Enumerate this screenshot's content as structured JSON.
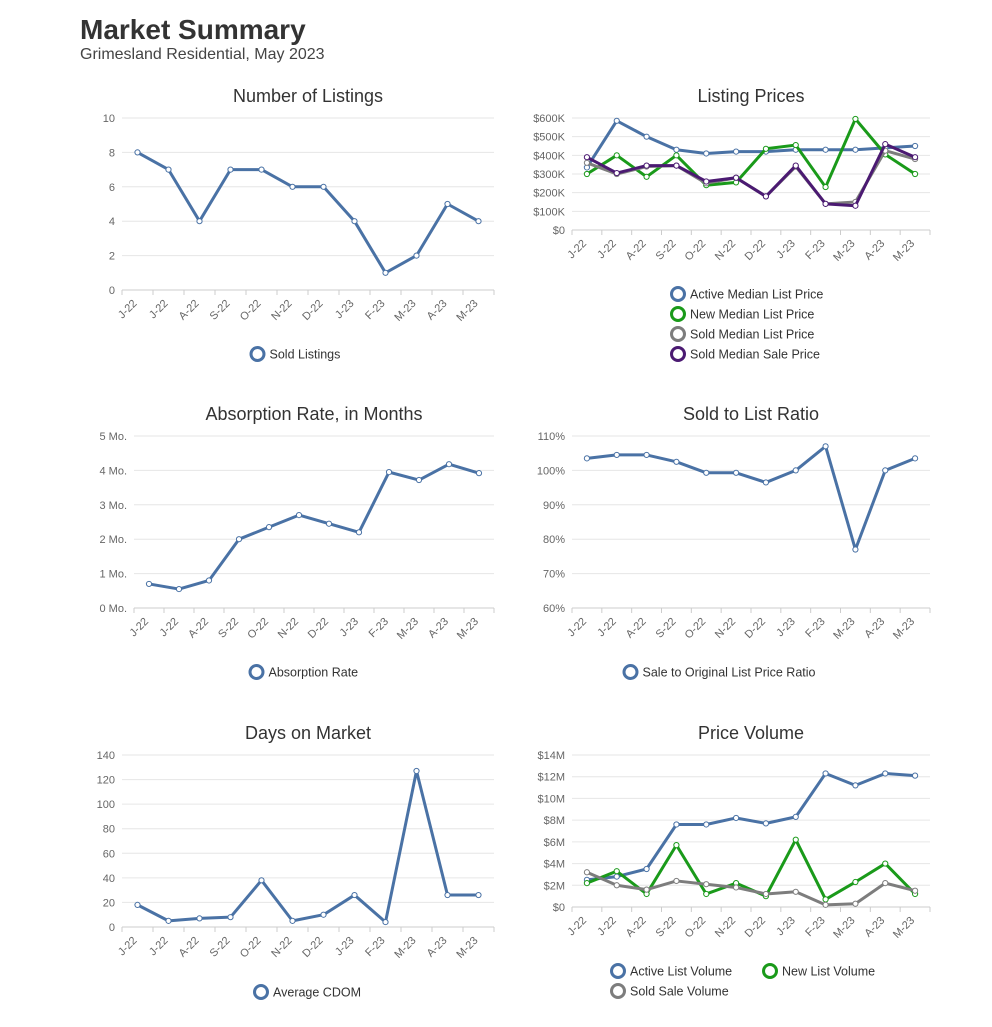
{
  "header": {
    "title": "Market Summary",
    "subtitle": "Grimesland Residential, May 2023"
  },
  "colors": {
    "blue": "#4a72a5",
    "green": "#1a9a1a",
    "gray": "#7d7d7d",
    "purple": "#4b1a72"
  },
  "chart_data": [
    {
      "id": "listings",
      "type": "line",
      "title": "Number of Listings",
      "categories": [
        "J-22",
        "J-22",
        "A-22",
        "S-22",
        "O-22",
        "N-22",
        "D-22",
        "J-23",
        "F-23",
        "M-23",
        "A-23",
        "M-23"
      ],
      "y_ticks": [
        "0",
        "2",
        "4",
        "6",
        "8",
        "10"
      ],
      "ylim": [
        0,
        10
      ],
      "series": [
        {
          "name": "Sold Listings",
          "color": "blue",
          "values": [
            8,
            7,
            4,
            7,
            7,
            6,
            6,
            4,
            1,
            2,
            5,
            4
          ]
        }
      ]
    },
    {
      "id": "prices",
      "type": "line",
      "title": "Listing Prices",
      "categories": [
        "J-22",
        "J-22",
        "A-22",
        "S-22",
        "O-22",
        "N-22",
        "D-22",
        "J-23",
        "F-23",
        "M-23",
        "A-23",
        "M-23"
      ],
      "y_ticks": [
        "$0",
        "$100K",
        "$200K",
        "$300K",
        "$400K",
        "$500K",
        "$600K"
      ],
      "ylim": [
        0,
        600000
      ],
      "series": [
        {
          "name": "Active Median List Price",
          "color": "blue",
          "values": [
            335000,
            585000,
            500000,
            430000,
            410000,
            420000,
            420000,
            430000,
            430000,
            430000,
            440000,
            450000
          ]
        },
        {
          "name": "New Median List Price",
          "color": "green",
          "values": [
            300000,
            400000,
            285000,
            400000,
            240000,
            255000,
            435000,
            455000,
            230000,
            595000,
            405000,
            300000
          ]
        },
        {
          "name": "Sold Median List Price",
          "color": "gray",
          "values": [
            360000,
            300000,
            340000,
            345000,
            250000,
            280000,
            180000,
            340000,
            140000,
            150000,
            425000,
            380000
          ]
        },
        {
          "name": "Sold Median Sale Price",
          "color": "purple",
          "values": [
            390000,
            305000,
            345000,
            345000,
            260000,
            280000,
            180000,
            345000,
            140000,
            130000,
            460000,
            390000
          ]
        }
      ]
    },
    {
      "id": "absorption",
      "type": "line",
      "title": "Absorption Rate, in Months",
      "categories": [
        "J-22",
        "J-22",
        "A-22",
        "S-22",
        "O-22",
        "N-22",
        "D-22",
        "J-23",
        "F-23",
        "M-23",
        "A-23",
        "M-23"
      ],
      "y_ticks": [
        "0 Mo.",
        "1 Mo.",
        "2 Mo.",
        "3 Mo.",
        "4 Mo.",
        "5 Mo."
      ],
      "ylim": [
        0,
        5
      ],
      "series": [
        {
          "name": "Absorption Rate",
          "color": "blue",
          "values": [
            0.7,
            0.55,
            0.8,
            2.0,
            2.35,
            2.7,
            2.45,
            2.2,
            3.95,
            3.72,
            4.18,
            3.92
          ]
        }
      ]
    },
    {
      "id": "ratio",
      "type": "line",
      "title": "Sold to List Ratio",
      "categories": [
        "J-22",
        "J-22",
        "A-22",
        "S-22",
        "O-22",
        "N-22",
        "D-22",
        "J-23",
        "F-23",
        "M-23",
        "A-23",
        "M-23"
      ],
      "y_ticks": [
        "60%",
        "70%",
        "80%",
        "90%",
        "100%",
        "110%"
      ],
      "ylim": [
        60,
        110
      ],
      "series": [
        {
          "name": "Sale to Original List Price Ratio",
          "color": "blue",
          "values": [
            103.5,
            104.5,
            104.5,
            102.5,
            99.3,
            99.3,
            96.5,
            100,
            107,
            77,
            100,
            103.5
          ]
        }
      ]
    },
    {
      "id": "dom",
      "type": "line",
      "title": "Days on Market",
      "categories": [
        "J-22",
        "J-22",
        "A-22",
        "S-22",
        "O-22",
        "N-22",
        "D-22",
        "J-23",
        "F-23",
        "M-23",
        "A-23",
        "M-23"
      ],
      "y_ticks": [
        "0",
        "20",
        "40",
        "60",
        "80",
        "100",
        "120",
        "140"
      ],
      "ylim": [
        0,
        140
      ],
      "series": [
        {
          "name": "Average CDOM",
          "color": "blue",
          "values": [
            18,
            5,
            7,
            8,
            38,
            5,
            10,
            26,
            4,
            127,
            26,
            26
          ]
        }
      ]
    },
    {
      "id": "volume",
      "type": "line",
      "title": "Price Volume",
      "categories": [
        "J-22",
        "J-22",
        "A-22",
        "S-22",
        "O-22",
        "N-22",
        "D-22",
        "J-23",
        "F-23",
        "M-23",
        "A-23",
        "M-23"
      ],
      "y_ticks": [
        "$0",
        "$2M",
        "$4M",
        "$6M",
        "$8M",
        "$10M",
        "$12M",
        "$14M"
      ],
      "ylim": [
        0,
        14
      ],
      "series": [
        {
          "name": "Active List Volume",
          "color": "blue",
          "values": [
            2.5,
            2.8,
            3.5,
            7.6,
            7.6,
            8.2,
            7.7,
            8.3,
            12.3,
            11.2,
            12.3,
            12.1
          ]
        },
        {
          "name": "New List Volume",
          "color": "green",
          "values": [
            2.2,
            3.3,
            1.2,
            5.7,
            1.2,
            2.2,
            1.0,
            6.2,
            0.7,
            2.3,
            4.0,
            1.2
          ]
        },
        {
          "name": "Sold Sale Volume",
          "color": "gray",
          "values": [
            3.2,
            2.0,
            1.6,
            2.4,
            2.1,
            1.8,
            1.2,
            1.4,
            0.2,
            0.3,
            2.2,
            1.5
          ]
        }
      ]
    }
  ]
}
